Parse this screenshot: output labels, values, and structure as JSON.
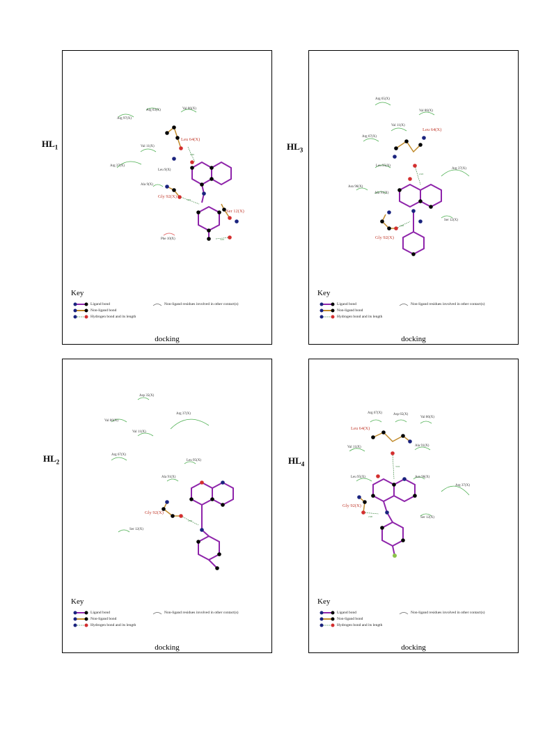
{
  "panels": [
    {
      "id": "HL1",
      "label_main": "HL",
      "label_sub": "1",
      "footer": "docking",
      "key": {
        "title": "Key",
        "ligand_bond": "Ligand bond",
        "nonligand_bond": "Non-ligand bond",
        "hbond": "Hydrogen bond and its length",
        "hydrophobic": "Non-ligand residues involved in other contact(s)"
      },
      "residues_green": [
        "Arg 97(X)",
        "Arg 63(X)",
        "Val 86(X)",
        "Val 11(X)",
        "Arg 37(X)",
        "Ala 9(X)"
      ],
      "residues_red": [
        "Leu 64(X)",
        "Gly 92(X)",
        "Ser 12(X)"
      ],
      "residues_other": [
        "Leu 9(X)",
        "Phe 10(X)"
      ],
      "hbond_lengths": [
        "2.85",
        "3.07",
        "3.05"
      ]
    },
    {
      "id": "HL3",
      "label_main": "HL",
      "label_sub": "3",
      "footer": "docking",
      "key": {
        "title": "Key",
        "ligand_bond": "Ligand bond",
        "nonligand_bond": "Non-ligand bond",
        "hbond": "Hydrogen bond and its length",
        "hydrophobic": "Non-ligand residues involved in other contact(s)"
      },
      "residues_green": [
        "Arg 65(X)",
        "Val 86(X)",
        "Val 11(X)",
        "Arg 67(X)",
        "Leu 95(X)",
        "Arg 37(X)",
        "Asn 96(X)",
        "Ala 91(X)",
        "Ser 12(X)"
      ],
      "residues_red": [
        "Leu 64(X)",
        "Gly 92(X)"
      ],
      "residues_other": [],
      "hbond_lengths": [
        "2.93",
        "2.96"
      ]
    },
    {
      "id": "HL2",
      "label_main": "HL",
      "label_sub": "2",
      "footer": "docking",
      "key": {
        "title": "Key",
        "ligand_bond": "Ligand bond",
        "nonligand_bond": "Non-ligand bond",
        "hbond": "Hydrogen bond and its length",
        "hydrophobic": "Non-ligand residues involved in other contact(s)"
      },
      "residues_green": [
        "Asp 35(X)",
        "Val 86(X)",
        "Arg 37(X)",
        "Val 11(X)",
        "Arg 67(X)",
        "Leu 95(X)",
        "Ala 91(X)",
        "Ser 12(X)"
      ],
      "residues_red": [
        "Gly 92(X)"
      ],
      "residues_other": [],
      "hbond_lengths": [
        "2.92"
      ]
    },
    {
      "id": "HL4",
      "label_main": "HL",
      "label_sub": "4",
      "footer": "docking",
      "key": {
        "title": "Key",
        "ligand_bond": "Ligand bond",
        "nonligand_bond": "Non-ligand bond",
        "hbond": "Hydrogen bond and its length",
        "hydrophobic": "Non-ligand residues involved in other contact(s)"
      },
      "residues_green": [
        "Arg 67(X)",
        "Asp 65(X)",
        "Val 86(X)",
        "Val 11(X)",
        "Ala 91(X)",
        "Leu 95(X)",
        "Asn 96(X)",
        "Arg 37(X)",
        "Ser 12(X)"
      ],
      "residues_red": [
        "Leu 64(X)",
        "Gly 92(X)"
      ],
      "residues_other": [],
      "hbond_lengths": [
        "3.04",
        "2.90"
      ]
    }
  ]
}
